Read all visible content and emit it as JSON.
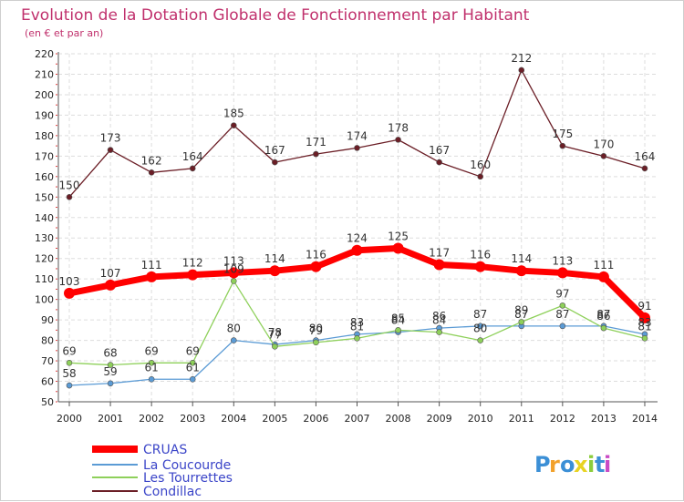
{
  "chart_data": {
    "type": "line",
    "title": "Evolution de la Dotation Globale de Fonctionnement par Habitant",
    "subtitle": "(en € et par an)",
    "x": [
      "2000",
      "2001",
      "2002",
      "2003",
      "2004",
      "2005",
      "2006",
      "2007",
      "2008",
      "2009",
      "2010",
      "2011",
      "2012",
      "2013",
      "2014"
    ],
    "ylim": [
      50,
      220
    ],
    "y_ticks": [
      50,
      60,
      70,
      80,
      90,
      100,
      110,
      120,
      130,
      140,
      150,
      160,
      170,
      180,
      190,
      200,
      210,
      220
    ],
    "grid": true,
    "legend_position": "bottom-left",
    "series": [
      {
        "name": "CRUAS",
        "color": "#ff0000",
        "values": [
          103,
          107,
          111,
          112,
          113,
          114,
          116,
          124,
          125,
          117,
          116,
          114,
          113,
          111,
          91
        ]
      },
      {
        "name": "La Coucourde",
        "color": "#5b9bd5",
        "values": [
          58,
          59,
          61,
          61,
          80,
          78,
          80,
          83,
          84,
          86,
          87,
          87,
          87,
          87,
          83
        ]
      },
      {
        "name": "Les Tourrettes",
        "color": "#8ed05a",
        "values": [
          69,
          68,
          69,
          69,
          109,
          77,
          79,
          81,
          85,
          84,
          80,
          89,
          97,
          86,
          81
        ]
      },
      {
        "name": "Condillac",
        "color": "#6b1e26",
        "values": [
          150,
          173,
          162,
          164,
          185,
          167,
          171,
          174,
          178,
          167,
          160,
          212,
          175,
          170,
          164
        ]
      }
    ]
  },
  "logo": {
    "letters": [
      "P",
      "r",
      "o",
      "x",
      "i",
      "t",
      "i"
    ]
  }
}
